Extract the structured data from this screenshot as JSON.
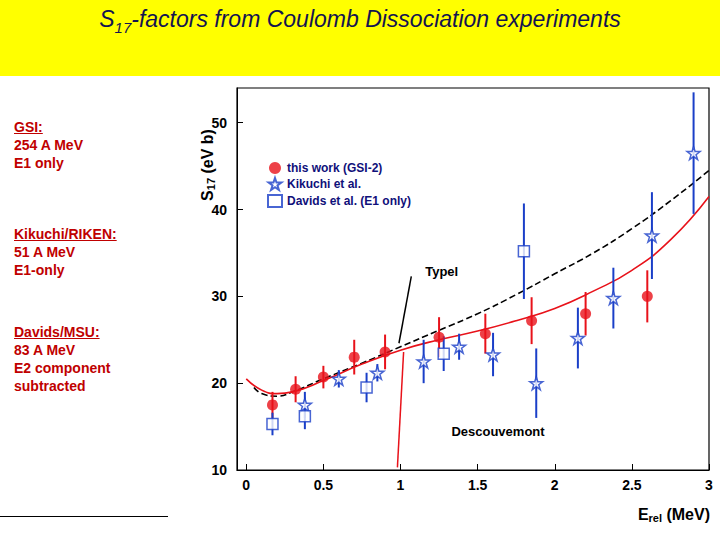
{
  "chart_data": {
    "type": "scatter",
    "title": [
      "S",
      "17",
      "-factors from Coulomb Dissociation experiments"
    ],
    "xlabel": [
      "E",
      "rel",
      " (MeV)"
    ],
    "ylabel": [
      "S",
      "17",
      " (eV b)"
    ],
    "xlim": [
      -0.06,
      3
    ],
    "xticks": [
      0,
      0.5,
      1,
      1.5,
      2,
      2.5,
      3
    ],
    "ylim": [
      10,
      54
    ],
    "yticks": [
      10,
      20,
      30,
      40,
      50
    ],
    "grid": false,
    "legend": "upper left",
    "series": [
      {
        "name": "this work (GSI-2)",
        "color": "#e8121a",
        "marker": "circle",
        "x": [
          0.17,
          0.32,
          0.5,
          0.7,
          0.9,
          1.25,
          1.55,
          1.85,
          2.2,
          2.6
        ],
        "values": [
          17.5,
          19.3,
          20.7,
          23,
          23.6,
          25.3,
          25.7,
          27.2,
          28,
          30
        ],
        "errors": [
          1.5,
          1.5,
          1.3,
          2,
          2,
          2.3,
          2.3,
          2.7,
          2.5,
          3
        ]
      },
      {
        "name": "Kikuchi et al.",
        "color": "#1a3fc8",
        "marker": "open_star",
        "x": [
          0.38,
          0.6,
          0.85,
          1.15,
          1.38,
          1.6,
          1.88,
          2.15,
          2.38,
          2.63,
          2.9
        ],
        "values": [
          17.5,
          20.5,
          21.2,
          22.5,
          24.2,
          23.3,
          20,
          25.2,
          29.8,
          37,
          46.5
        ],
        "errors": [
          1.5,
          1,
          1,
          2.5,
          1.5,
          2.5,
          4,
          3.5,
          3.5,
          5,
          7
        ]
      },
      {
        "name": "Davids et al. (E1 only)",
        "color": "#1a3fc8",
        "marker": "open_square",
        "x": [
          0.17,
          0.38,
          0.78,
          1.28,
          1.8
        ],
        "values": [
          15.3,
          16.2,
          19.5,
          23.4,
          35.2
        ],
        "errors": [
          1.3,
          1.5,
          1.7,
          2,
          5.5
        ]
      }
    ],
    "curves": [
      {
        "name": "Typel",
        "color": "#000000",
        "line_style": "dashed",
        "x": [
          0.05,
          0.1,
          0.2,
          0.3,
          0.5,
          0.75,
          1,
          1.25,
          1.5,
          1.75,
          2,
          2.25,
          2.5,
          2.75,
          3
        ],
        "values": [
          19.5,
          18.8,
          18.5,
          19,
          20.5,
          22.3,
          24.2,
          26.1,
          28,
          30.2,
          32.6,
          35,
          37.8,
          41,
          44.5
        ]
      },
      {
        "name": "Descouvemont",
        "color": "#e8121a",
        "line_style": "solid",
        "x": [
          0,
          0.1,
          0.2,
          0.3,
          0.5,
          0.75,
          1,
          1.25,
          1.5,
          1.75,
          2,
          2.25,
          2.5,
          2.75,
          3
        ],
        "values": [
          20.5,
          19.2,
          18.8,
          19,
          20.3,
          22.2,
          23.8,
          25,
          26,
          27.2,
          28.6,
          30.6,
          33,
          36.5,
          41.5
        ]
      }
    ]
  },
  "side_notes": [
    {
      "heading": "GSI:",
      "lines": [
        "254 A MeV",
        "E1 only"
      ]
    },
    {
      "heading": "Kikuchi/RIKEN:",
      "lines": [
        "51 A MeV",
        "E1-only"
      ]
    },
    {
      "heading": "Davids/MSU:",
      "lines": [
        "83 A MeV",
        "E2 component",
        "subtracted"
      ]
    }
  ]
}
